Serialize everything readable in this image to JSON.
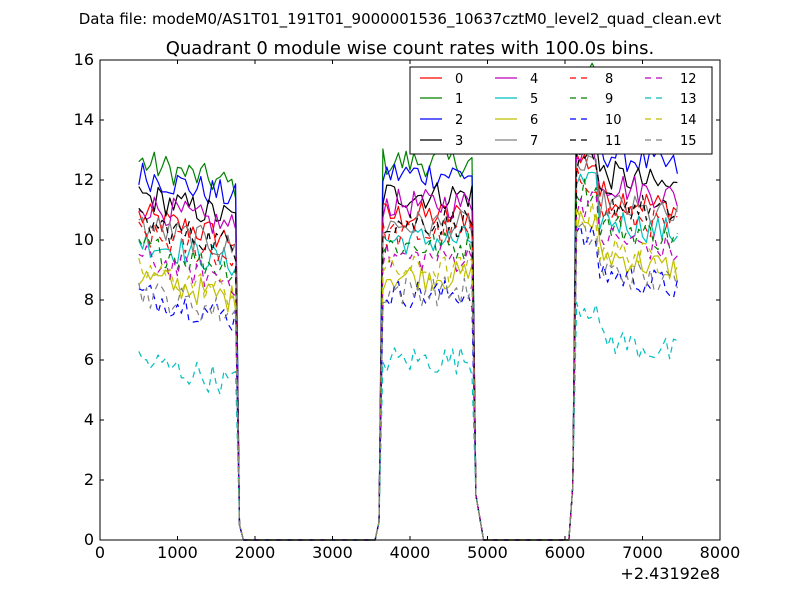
{
  "figure": {
    "suptitle": "Data file: modeM0/AS1T01_191T01_9000001536_10637cztM0_level2_quad_clean.evt"
  },
  "chart_data": {
    "type": "line",
    "title": "Quadrant 0 module wise count rates with 100.0s bins.",
    "xlabel": "",
    "ylabel": "",
    "x_offset_label": "+2.43192e8",
    "xlim": [
      0,
      8000
    ],
    "ylim": [
      0,
      16
    ],
    "xticks": [
      "0",
      "1000",
      "2000",
      "3000",
      "4000",
      "5000",
      "6000",
      "7000",
      "8000"
    ],
    "yticks": [
      "0",
      "2",
      "4",
      "6",
      "8",
      "10",
      "12",
      "14",
      "16"
    ],
    "grid": false,
    "legend_position": "top-right",
    "legend_columns": 4,
    "series": [
      {
        "name": "0",
        "color": "#ff0000",
        "dash": "solid",
        "level": 10.8
      },
      {
        "name": "1",
        "color": "#008000",
        "dash": "solid",
        "level": 12.6
      },
      {
        "name": "2",
        "color": "#0000ff",
        "dash": "solid",
        "level": 12.2
      },
      {
        "name": "3",
        "color": "#000000",
        "dash": "solid",
        "level": 11.5
      },
      {
        "name": "4",
        "color": "#bf00bf",
        "dash": "solid",
        "level": 11.2
      },
      {
        "name": "5",
        "color": "#00bfbf",
        "dash": "solid",
        "level": 10.0
      },
      {
        "name": "6",
        "color": "#bfbf00",
        "dash": "solid",
        "level": 8.8
      },
      {
        "name": "7",
        "color": "#808080",
        "dash": "solid",
        "level": 10.5
      },
      {
        "name": "8",
        "color": "#ff0000",
        "dash": "dashed",
        "level": 10.2
      },
      {
        "name": "9",
        "color": "#008000",
        "dash": "dashed",
        "level": 9.8
      },
      {
        "name": "10",
        "color": "#0000ff",
        "dash": "dashed",
        "level": 8.2
      },
      {
        "name": "11",
        "color": "#000000",
        "dash": "dashed",
        "level": 10.6
      },
      {
        "name": "12",
        "color": "#bf00bf",
        "dash": "dashed",
        "level": 9.4
      },
      {
        "name": "13",
        "color": "#00bfbf",
        "dash": "dashed",
        "level": 6.0
      },
      {
        "name": "14",
        "color": "#bfbf00",
        "dash": "dashed",
        "level": 9.0
      },
      {
        "name": "15",
        "color": "#808080",
        "dash": "dashed",
        "level": 8.3
      }
    ],
    "segments": [
      {
        "x_start": 500,
        "x_end": 1750,
        "step": 50
      },
      {
        "x_start": 3650,
        "x_end": 4800,
        "step": 50
      },
      {
        "x_start": 6150,
        "x_end": 7450,
        "step": 50
      }
    ],
    "gap_points": [
      1850,
      1950,
      3550,
      4950,
      5050,
      6050
    ]
  }
}
